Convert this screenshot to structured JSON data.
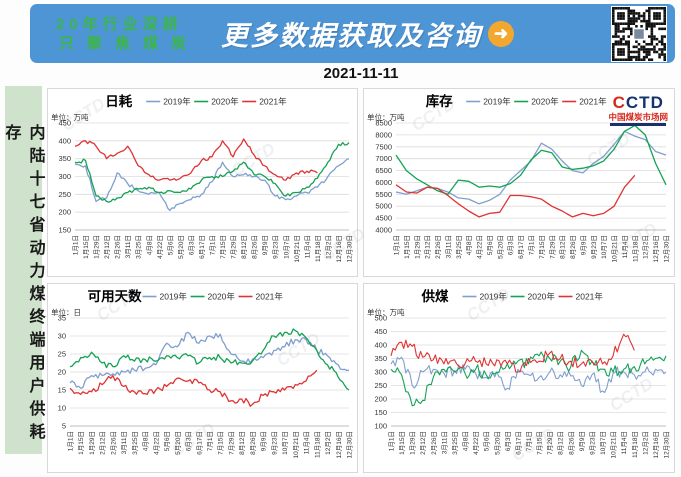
{
  "header": {
    "slogan_line1": "20年行业深耕",
    "slogan_line2": "只聚焦煤炭",
    "headline": "更多数据获取及咨询",
    "arrow_icon": "➜"
  },
  "report_date": "2021-11-11",
  "sidebar": {
    "title": "内陆十七省动力煤终端用户供耗存"
  },
  "logo": {
    "brand_first": "C",
    "brand_rest": "CTD",
    "site_name": "中国煤炭市场网"
  },
  "watermark": "CCTD",
  "colors": {
    "series_2019": "#7f9fce",
    "series_2020": "#14a254",
    "series_2021": "#e03233",
    "banner_blue": "#4e95d6",
    "slogan_green": "#3cb549",
    "arrow_orange": "#f2a72e",
    "sidebar_green": "#cfe3cc",
    "logo_red": "#d6281e",
    "logo_navy": "#16336e"
  },
  "chart_data": [
    {
      "type": "line",
      "title": "日耗",
      "unit_label": "单位：万吨",
      "ylim": [
        150,
        450
      ],
      "ytick_step": 50,
      "grid": true,
      "legend_position": "top",
      "noise": 5,
      "categories": [
        "1月1日",
        "1月15日",
        "1月29日",
        "2月12日",
        "2月26日",
        "3月11日",
        "3月25日",
        "4月8日",
        "4月22日",
        "5月6日",
        "5月20日",
        "6月3日",
        "6月17日",
        "7月1日",
        "7月15日",
        "7月29日",
        "8月12日",
        "8月26日",
        "9月9日",
        "9月23日",
        "10月7日",
        "10月21日",
        "11月4日",
        "11月18日",
        "12月2日",
        "12月16日",
        "12月30日"
      ],
      "series": [
        {
          "name": "2019年",
          "color": "#7f9fce",
          "values": [
            335,
            330,
            230,
            240,
            310,
            280,
            260,
            250,
            255,
            205,
            225,
            235,
            250,
            285,
            340,
            300,
            305,
            300,
            290,
            245,
            235,
            245,
            255,
            270,
            300,
            330,
            350
          ]
        },
        {
          "name": "2020年",
          "color": "#14a254",
          "values": [
            340,
            345,
            245,
            230,
            240,
            255,
            265,
            270,
            255,
            260,
            255,
            265,
            290,
            300,
            300,
            315,
            340,
            305,
            300,
            280,
            245,
            255,
            270,
            295,
            340,
            390,
            395
          ]
        },
        {
          "name": "2021年",
          "color": "#e03233",
          "values": [
            385,
            400,
            385,
            350,
            365,
            385,
            330,
            305,
            290,
            290,
            295,
            310,
            345,
            355,
            400,
            355,
            405,
            360,
            330,
            305,
            290,
            310,
            315,
            310
          ]
        }
      ]
    },
    {
      "type": "line",
      "title": "库存",
      "unit_label": "单位：万吨",
      "ylim": [
        4000,
        8500
      ],
      "ytick_step": 500,
      "grid": true,
      "legend_position": "top",
      "noise": 0,
      "categories": [
        "1月1日",
        "1月15日",
        "1月29日",
        "2月12日",
        "2月26日",
        "3月11日",
        "3月25日",
        "4月8日",
        "4月22日",
        "5月6日",
        "5月20日",
        "6月3日",
        "6月17日",
        "7月1日",
        "7月15日",
        "7月29日",
        "8月12日",
        "8月26日",
        "9月9日",
        "9月23日",
        "10月7日",
        "10月21日",
        "11月4日",
        "11月18日",
        "12月2日",
        "12月16日",
        "12月30日"
      ],
      "series": [
        {
          "name": "2019年",
          "color": "#7f9fce",
          "values": [
            5600,
            5500,
            5650,
            5800,
            5750,
            5600,
            5350,
            5300,
            5100,
            5250,
            5500,
            6100,
            6500,
            6900,
            7650,
            7400,
            6900,
            6500,
            6400,
            6800,
            7100,
            7600,
            8150,
            7950,
            7800,
            7300,
            7150
          ]
        },
        {
          "name": "2020年",
          "color": "#14a254",
          "values": [
            7150,
            6500,
            6150,
            5900,
            5650,
            5500,
            6100,
            6050,
            5800,
            5850,
            5800,
            5950,
            6300,
            6950,
            7350,
            7250,
            6650,
            6550,
            6600,
            6700,
            6900,
            7400,
            8150,
            8400,
            8000,
            6800,
            5900
          ]
        },
        {
          "name": "2021年",
          "color": "#e03233",
          "values": [
            5900,
            5600,
            5550,
            5800,
            5750,
            5450,
            5100,
            4800,
            4550,
            4700,
            4750,
            5450,
            5450,
            5400,
            5300,
            5000,
            4800,
            4550,
            4700,
            4600,
            4700,
            5000,
            5800,
            6300
          ]
        }
      ]
    },
    {
      "type": "line",
      "title": "可用天数",
      "unit_label": "单位：日",
      "ylim": [
        5,
        35
      ],
      "ytick_step": 5,
      "grid": true,
      "legend_position": "top",
      "noise": 0.9,
      "categories": [
        "1月1日",
        "1月15日",
        "1月29日",
        "2月12日",
        "2月26日",
        "3月11日",
        "3月25日",
        "4月8日",
        "4月22日",
        "5月6日",
        "5月20日",
        "6月3日",
        "6月17日",
        "7月1日",
        "7月15日",
        "7月29日",
        "8月12日",
        "8月26日",
        "9月9日",
        "9月23日",
        "10月7日",
        "10月21日",
        "11月4日",
        "11月18日",
        "12月2日",
        "12月16日",
        "12月30日"
      ],
      "series": [
        {
          "name": "2019年",
          "color": "#7f9fce",
          "values": [
            17,
            15.5,
            19,
            19,
            19.5,
            20,
            20.5,
            21,
            22,
            28,
            27,
            31,
            28,
            30,
            30.5,
            25,
            23,
            23.5,
            24,
            26,
            27,
            29,
            29,
            26,
            24.5,
            22,
            20.5
          ]
        },
        {
          "name": "2020年",
          "color": "#14a254",
          "values": [
            21.5,
            24,
            25.5,
            22.5,
            21.5,
            24.5,
            23,
            23.5,
            23,
            24.5,
            24,
            24.5,
            22.5,
            24,
            24,
            22.5,
            22.5,
            23,
            26,
            30,
            31,
            31.5,
            29.5,
            26,
            22,
            18.5,
            15
          ]
        },
        {
          "name": "2021年",
          "color": "#e03233",
          "values": [
            15.5,
            13.8,
            14.5,
            16.5,
            19,
            16,
            14.5,
            14,
            15,
            16,
            18.3,
            17.5,
            17,
            15,
            14.5,
            12,
            12.5,
            11,
            13.5,
            14.5,
            15,
            16.5,
            17.5,
            20.5
          ]
        }
      ]
    },
    {
      "type": "line",
      "title": "供煤",
      "unit_label": "单位：万吨",
      "ylim": [
        100,
        500
      ],
      "ytick_step": 50,
      "grid": true,
      "legend_position": "top",
      "noise": 22,
      "categories": [
        "1月1日",
        "1月15日",
        "1月29日",
        "2月12日",
        "2月26日",
        "3月11日",
        "3月25日",
        "4月8日",
        "4月22日",
        "5月6日",
        "5月20日",
        "6月3日",
        "6月17日",
        "7月1日",
        "7月15日",
        "7月29日",
        "8月12日",
        "8月26日",
        "9月9日",
        "9月23日",
        "10月7日",
        "10月21日",
        "11月4日",
        "11月18日",
        "12月2日",
        "12月16日",
        "12月30日"
      ],
      "series": [
        {
          "name": "2019年",
          "color": "#7f9fce",
          "values": [
            330,
            355,
            250,
            300,
            310,
            295,
            305,
            310,
            295,
            280,
            300,
            240,
            310,
            290,
            280,
            300,
            290,
            285,
            250,
            290,
            230,
            295,
            300,
            290,
            300,
            310,
            300
          ]
        },
        {
          "name": "2020年",
          "color": "#14a254",
          "values": [
            310,
            290,
            175,
            195,
            280,
            310,
            300,
            295,
            310,
            290,
            300,
            330,
            340,
            330,
            360,
            350,
            340,
            320,
            380,
            340,
            310,
            300,
            310,
            320,
            330,
            350,
            360
          ]
        },
        {
          "name": "2021年",
          "color": "#e03233",
          "values": [
            360,
            410,
            395,
            355,
            345,
            330,
            345,
            330,
            340,
            330,
            345,
            330,
            300,
            350,
            340,
            370,
            350,
            340,
            330,
            340,
            330,
            360,
            440,
            380
          ]
        }
      ]
    }
  ]
}
